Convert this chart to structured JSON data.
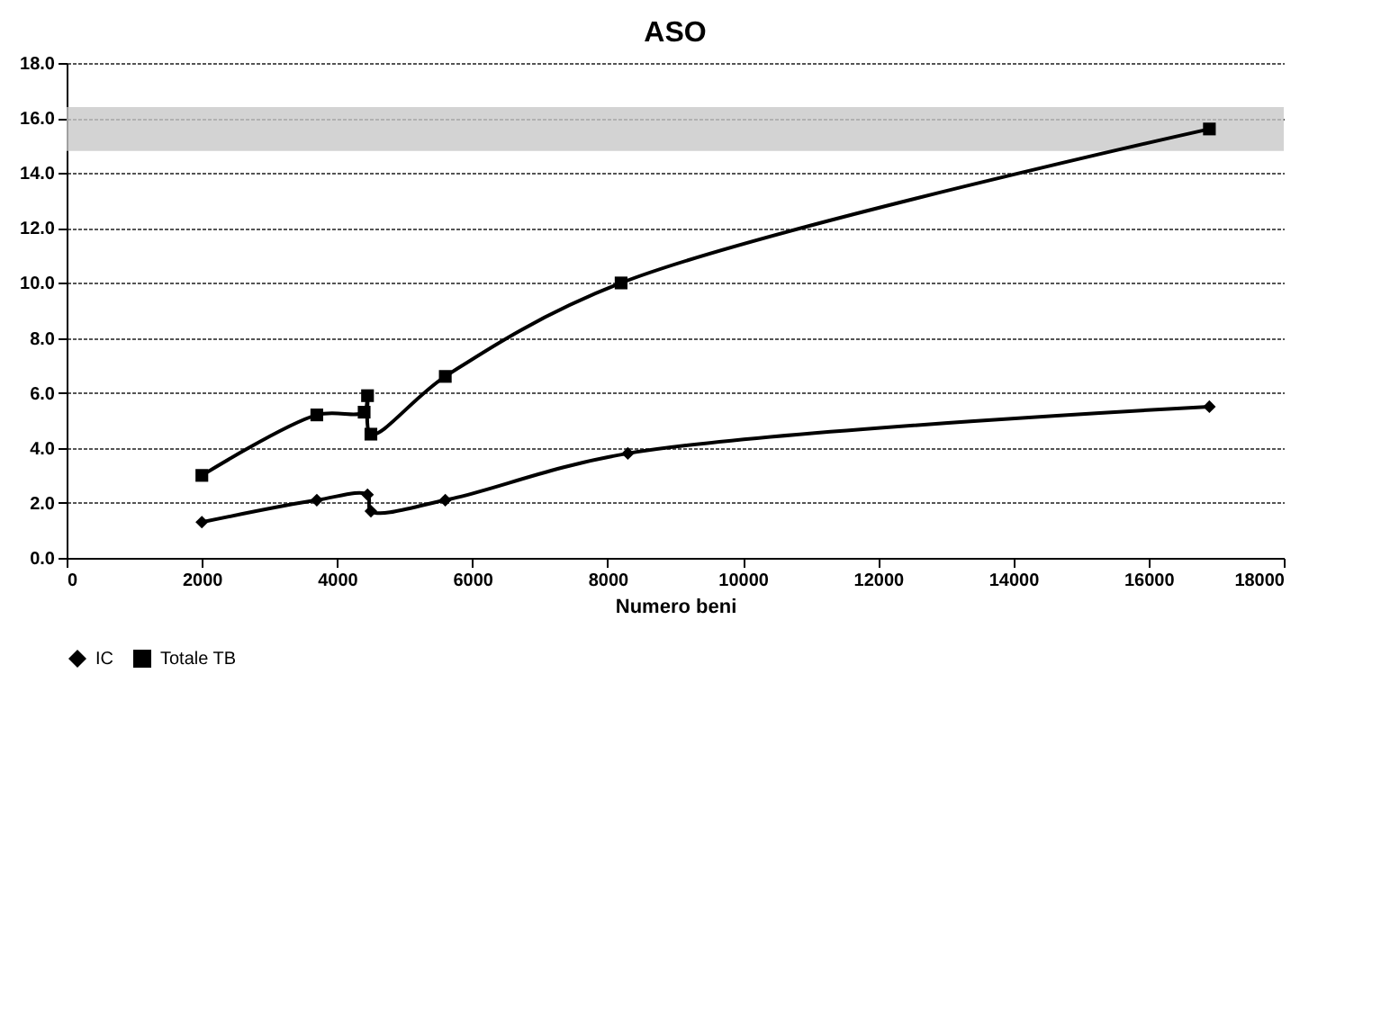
{
  "chart_data": {
    "type": "line",
    "title": "ASO",
    "xlabel": "Numero beni",
    "xlim": [
      0,
      18000
    ],
    "xticks": [
      0,
      2000,
      4000,
      6000,
      8000,
      10000,
      12000,
      14000,
      16000,
      18000
    ],
    "ylim": [
      0,
      18
    ],
    "yticks": [
      {
        "value": 0,
        "label": "0.0"
      },
      {
        "value": 2,
        "label": "2.0"
      },
      {
        "value": 4,
        "label": "4.0"
      },
      {
        "value": 6,
        "label": "6.0"
      },
      {
        "value": 8,
        "label": "8.0"
      },
      {
        "value": 10,
        "label": "10.0"
      },
      {
        "value": 12,
        "label": "12.0"
      },
      {
        "value": 14,
        "label": "14.0"
      },
      {
        "value": 16,
        "label": "16.0"
      },
      {
        "value": 18,
        "label": "18.0"
      }
    ],
    "grid": "y",
    "legend": "bottom",
    "line_style": "solid",
    "bands": [
      {
        "axis": "y",
        "from": 14.8,
        "to": 16.4,
        "color": "#c8c8c8"
      }
    ],
    "series": [
      {
        "name": "IC",
        "color": "#000000",
        "marker": "diamond",
        "x": [
          2000,
          3700,
          4450,
          4500,
          5600,
          8300,
          16900
        ],
        "values": [
          1.3,
          2.1,
          2.3,
          1.7,
          2.1,
          3.8,
          5.5
        ]
      },
      {
        "name": "Totale TB",
        "color": "#000000",
        "marker": "square",
        "x": [
          2000,
          3700,
          4400,
          4450,
          4500,
          5600,
          8200,
          16900
        ],
        "values": [
          3.0,
          5.2,
          5.3,
          5.9,
          4.5,
          6.6,
          10.0,
          15.6
        ]
      }
    ]
  }
}
